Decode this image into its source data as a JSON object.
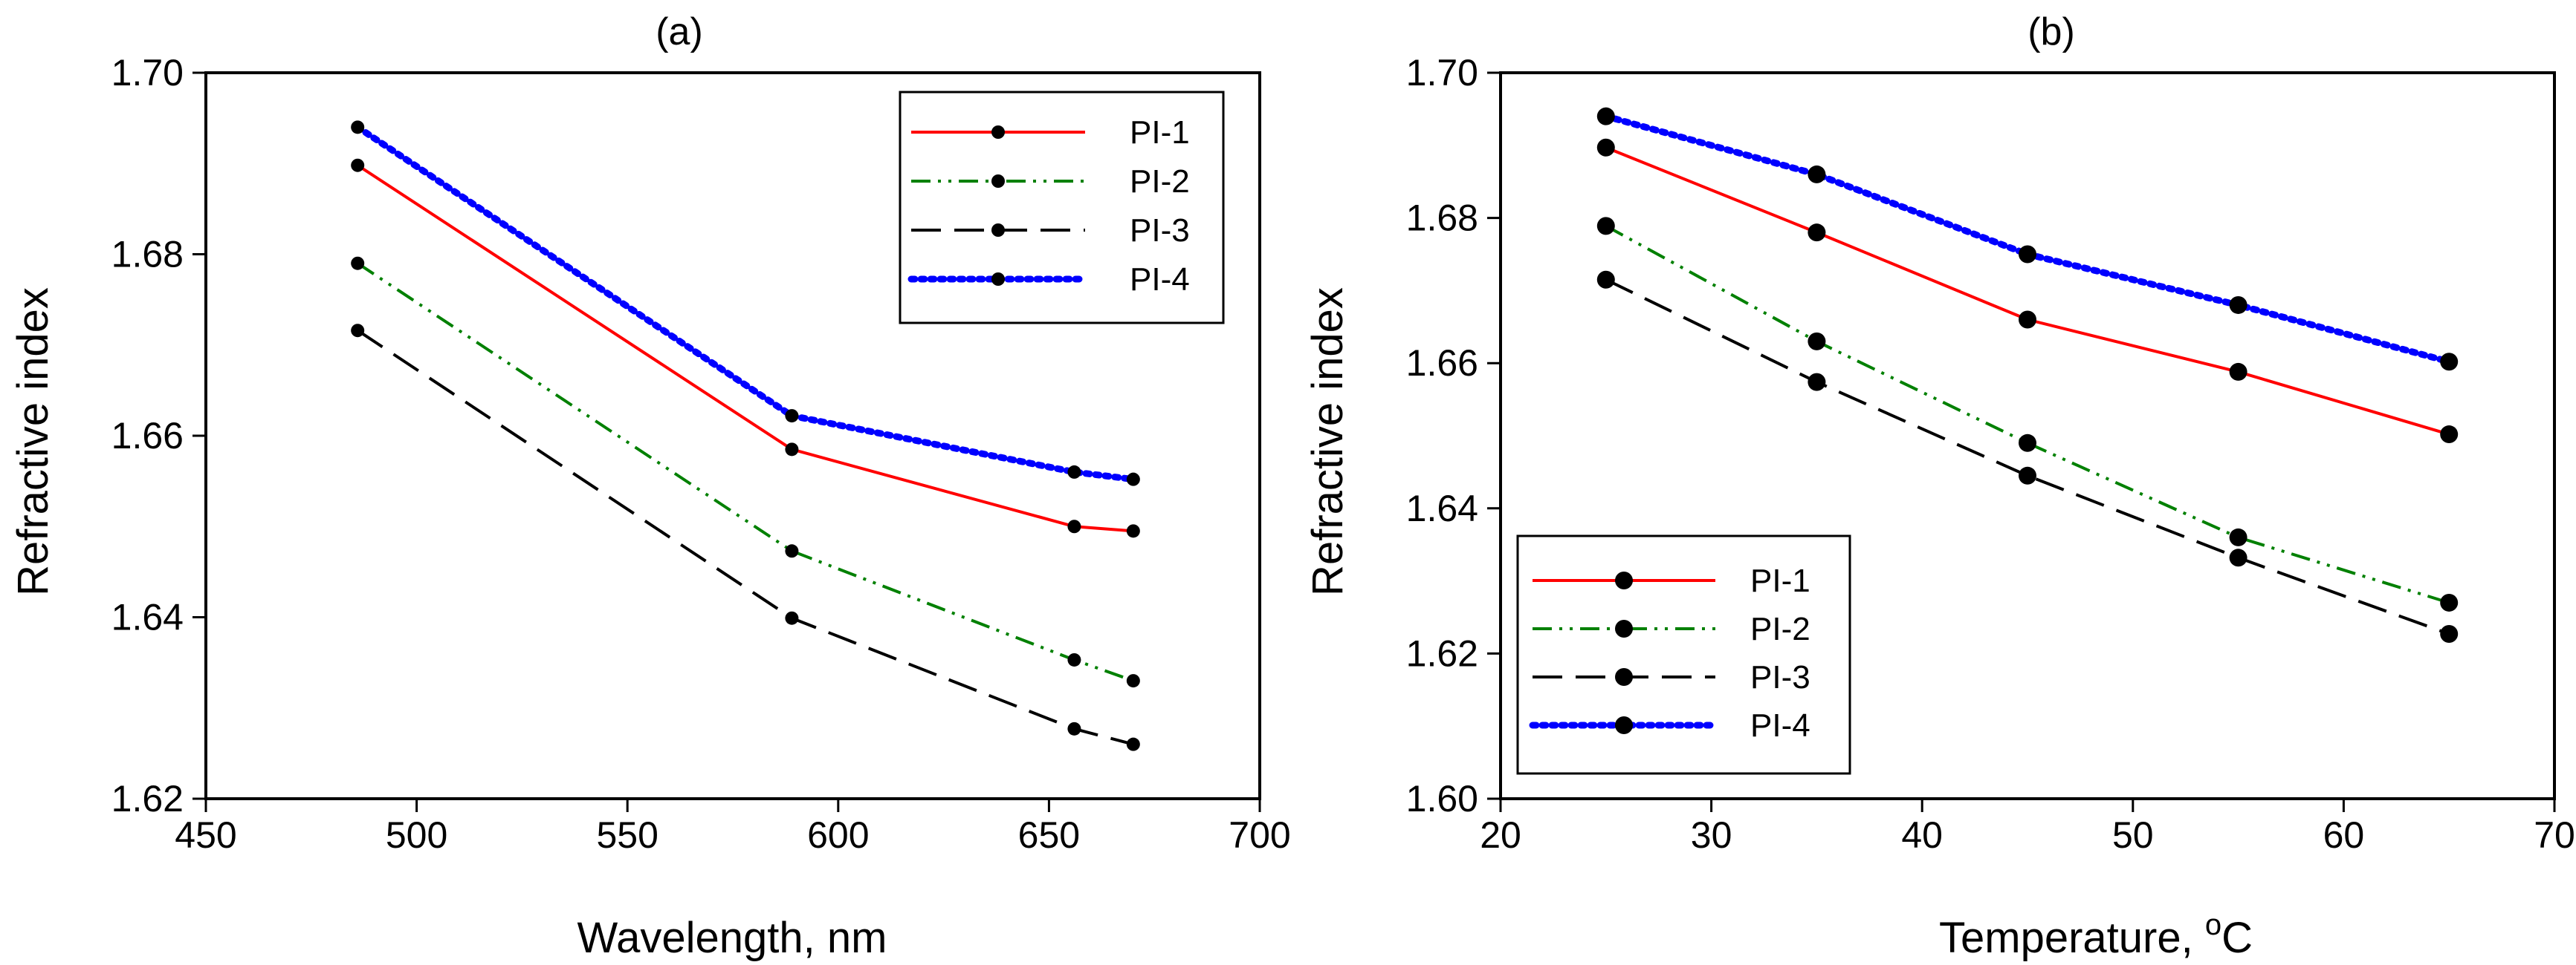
{
  "chart_data": [
    {
      "type": "line",
      "title": "(a)",
      "xlabel": "Wavelength, nm",
      "ylabel": "Refractive index",
      "xlim": [
        450,
        700
      ],
      "ylim": [
        1.62,
        1.7
      ],
      "xticks": [
        450,
        500,
        550,
        600,
        650,
        700
      ],
      "yticks": [
        1.62,
        1.64,
        1.66,
        1.68,
        1.7
      ],
      "ytick_labels": [
        "1.62",
        "1.64",
        "1.66",
        "1.68",
        "1.70"
      ],
      "grid": false,
      "legend_position": "top-right",
      "x": [
        486,
        589,
        656,
        670
      ],
      "series": [
        {
          "name": "PI-1",
          "color": "#ff0000",
          "style": "solid",
          "values": [
            1.6898,
            1.6585,
            1.65,
            1.6495
          ]
        },
        {
          "name": "PI-2",
          "color": "#008000",
          "style": "dash-dot-dot",
          "values": [
            1.679,
            1.6473,
            1.6353,
            1.633
          ]
        },
        {
          "name": "PI-3",
          "color": "#000000",
          "style": "long-dash",
          "values": [
            1.6716,
            1.6399,
            1.6277,
            1.626
          ]
        },
        {
          "name": "PI-4",
          "color": "#0000ff",
          "style": "dotted",
          "values": [
            1.694,
            1.6622,
            1.656,
            1.6552
          ]
        }
      ]
    },
    {
      "type": "line",
      "title": "(b)",
      "xlabel": "Temperature, ",
      "xlabel_unit_sup": "o",
      "xlabel_unit": "C",
      "ylabel": "Refractive index",
      "xlim": [
        20,
        70
      ],
      "ylim": [
        1.6,
        1.7
      ],
      "xticks": [
        20,
        30,
        40,
        50,
        60,
        70
      ],
      "yticks": [
        1.6,
        1.62,
        1.64,
        1.66,
        1.68,
        1.7
      ],
      "ytick_labels": [
        "1.60",
        "1.62",
        "1.64",
        "1.66",
        "1.68",
        "1.70"
      ],
      "grid": false,
      "legend_position": "bottom-left",
      "x": [
        25,
        35,
        45,
        55,
        65
      ],
      "series": [
        {
          "name": "PI-1",
          "color": "#ff0000",
          "style": "solid",
          "values": [
            1.6897,
            1.678,
            1.666,
            1.6588,
            1.6502
          ]
        },
        {
          "name": "PI-2",
          "color": "#008000",
          "style": "dash-dot-dot",
          "values": [
            1.6789,
            1.663,
            1.649,
            1.636,
            1.627
          ]
        },
        {
          "name": "PI-3",
          "color": "#000000",
          "style": "long-dash",
          "values": [
            1.6715,
            1.6574,
            1.6445,
            1.6332,
            1.6227
          ]
        },
        {
          "name": "PI-4",
          "color": "#0000ff",
          "style": "dotted",
          "values": [
            1.694,
            1.686,
            1.675,
            1.668,
            1.6602
          ]
        }
      ]
    }
  ]
}
